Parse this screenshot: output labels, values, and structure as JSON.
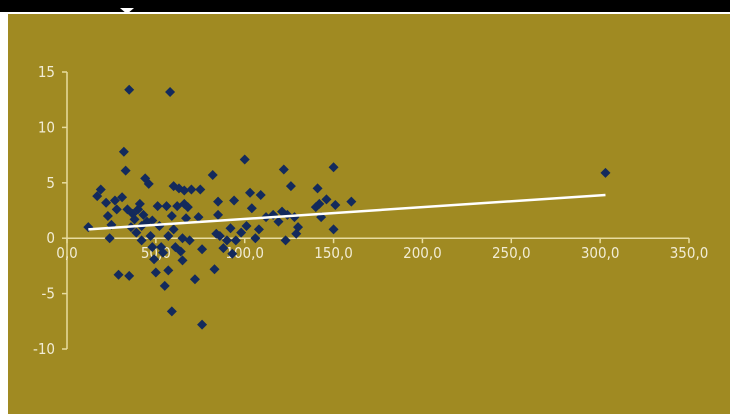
{
  "colors": {
    "background": "#a08a22",
    "top_bar": "#000000",
    "axis": "#e8dca0",
    "marker": "#132a5c",
    "trendline": "#ffffff",
    "tick_text": "#f1ecd5"
  },
  "chart_data": {
    "type": "scatter",
    "title": "",
    "xlabel": "",
    "ylabel": "",
    "xlim": [
      0,
      350
    ],
    "ylim": [
      -10,
      15
    ],
    "x_ticks": [
      "0,0",
      "50,0",
      "100,0",
      "150,0",
      "200,0",
      "250,0",
      "300,0",
      "350,0"
    ],
    "y_ticks": [
      "15",
      "10",
      "5",
      "0",
      "-5",
      "-10"
    ],
    "grid": false,
    "legend": "none",
    "marker": "diamond",
    "points": [
      [
        12,
        1
      ],
      [
        17,
        3.8
      ],
      [
        19,
        4.4
      ],
      [
        22,
        3.2
      ],
      [
        23,
        2
      ],
      [
        24,
        0
      ],
      [
        25,
        1.2
      ],
      [
        27,
        3.4
      ],
      [
        28,
        2.6
      ],
      [
        29,
        -3.3
      ],
      [
        31,
        3.7
      ],
      [
        32,
        7.8
      ],
      [
        33,
        6.1
      ],
      [
        34,
        2.6
      ],
      [
        35,
        -3.4
      ],
      [
        35,
        13.4
      ],
      [
        36,
        1
      ],
      [
        37,
        2.2
      ],
      [
        38,
        1.7
      ],
      [
        39,
        0.5
      ],
      [
        40,
        2.6
      ],
      [
        41,
        3.1
      ],
      [
        42,
        -0.2
      ],
      [
        42,
        1.1
      ],
      [
        43,
        2.1
      ],
      [
        44,
        5.4
      ],
      [
        45,
        1.5
      ],
      [
        46,
        4.9
      ],
      [
        47,
        0.2
      ],
      [
        48,
        -0.8
      ],
      [
        48,
        1.6
      ],
      [
        49,
        -1.9
      ],
      [
        50,
        -3.1
      ],
      [
        51,
        2.9
      ],
      [
        52,
        1.1
      ],
      [
        53,
        -0.8
      ],
      [
        54,
        -1.3
      ],
      [
        55,
        -4.3
      ],
      [
        56,
        2.9
      ],
      [
        57,
        -2.9
      ],
      [
        57,
        0.2
      ],
      [
        58,
        13.2
      ],
      [
        59,
        2
      ],
      [
        59,
        -6.6
      ],
      [
        60,
        0.8
      ],
      [
        60,
        4.7
      ],
      [
        61,
        -0.8
      ],
      [
        62,
        2.9
      ],
      [
        63,
        4.5
      ],
      [
        64,
        -1.2
      ],
      [
        65,
        0
      ],
      [
        65,
        -2
      ],
      [
        66,
        3.1
      ],
      [
        66,
        4.3
      ],
      [
        67,
        1.8
      ],
      [
        68,
        2.8
      ],
      [
        69,
        -0.2
      ],
      [
        70,
        4.4
      ],
      [
        72,
        -3.7
      ],
      [
        74,
        1.9
      ],
      [
        75,
        4.4
      ],
      [
        76,
        -1
      ],
      [
        76,
        -7.8
      ],
      [
        82,
        5.7
      ],
      [
        83,
        -2.8
      ],
      [
        84,
        0.4
      ],
      [
        85,
        3.3
      ],
      [
        85,
        2.1
      ],
      [
        86,
        0.2
      ],
      [
        88,
        -0.9
      ],
      [
        90,
        -0.2
      ],
      [
        92,
        0.9
      ],
      [
        93,
        -1.4
      ],
      [
        94,
        3.4
      ],
      [
        95,
        -0.2
      ],
      [
        98,
        0.5
      ],
      [
        100,
        7.1
      ],
      [
        101,
        1.1
      ],
      [
        103,
        4.1
      ],
      [
        104,
        2.7
      ],
      [
        106,
        0
      ],
      [
        108,
        0.8
      ],
      [
        109,
        3.9
      ],
      [
        112,
        1.9
      ],
      [
        116,
        2.1
      ],
      [
        119,
        1.5
      ],
      [
        121,
        2.4
      ],
      [
        122,
        6.2
      ],
      [
        123,
        -0.2
      ],
      [
        124,
        2.1
      ],
      [
        126,
        4.7
      ],
      [
        128,
        1.9
      ],
      [
        129,
        0.4
      ],
      [
        130,
        1
      ],
      [
        140,
        2.8
      ],
      [
        141,
        4.5
      ],
      [
        142,
        3.1
      ],
      [
        143,
        1.9
      ],
      [
        146,
        3.5
      ],
      [
        150,
        0.8
      ],
      [
        150,
        6.4
      ],
      [
        151,
        3
      ],
      [
        160,
        3.3
      ],
      [
        303,
        5.9
      ]
    ],
    "trendline": {
      "x": [
        12,
        303
      ],
      "y": [
        0.8,
        3.9
      ]
    }
  }
}
